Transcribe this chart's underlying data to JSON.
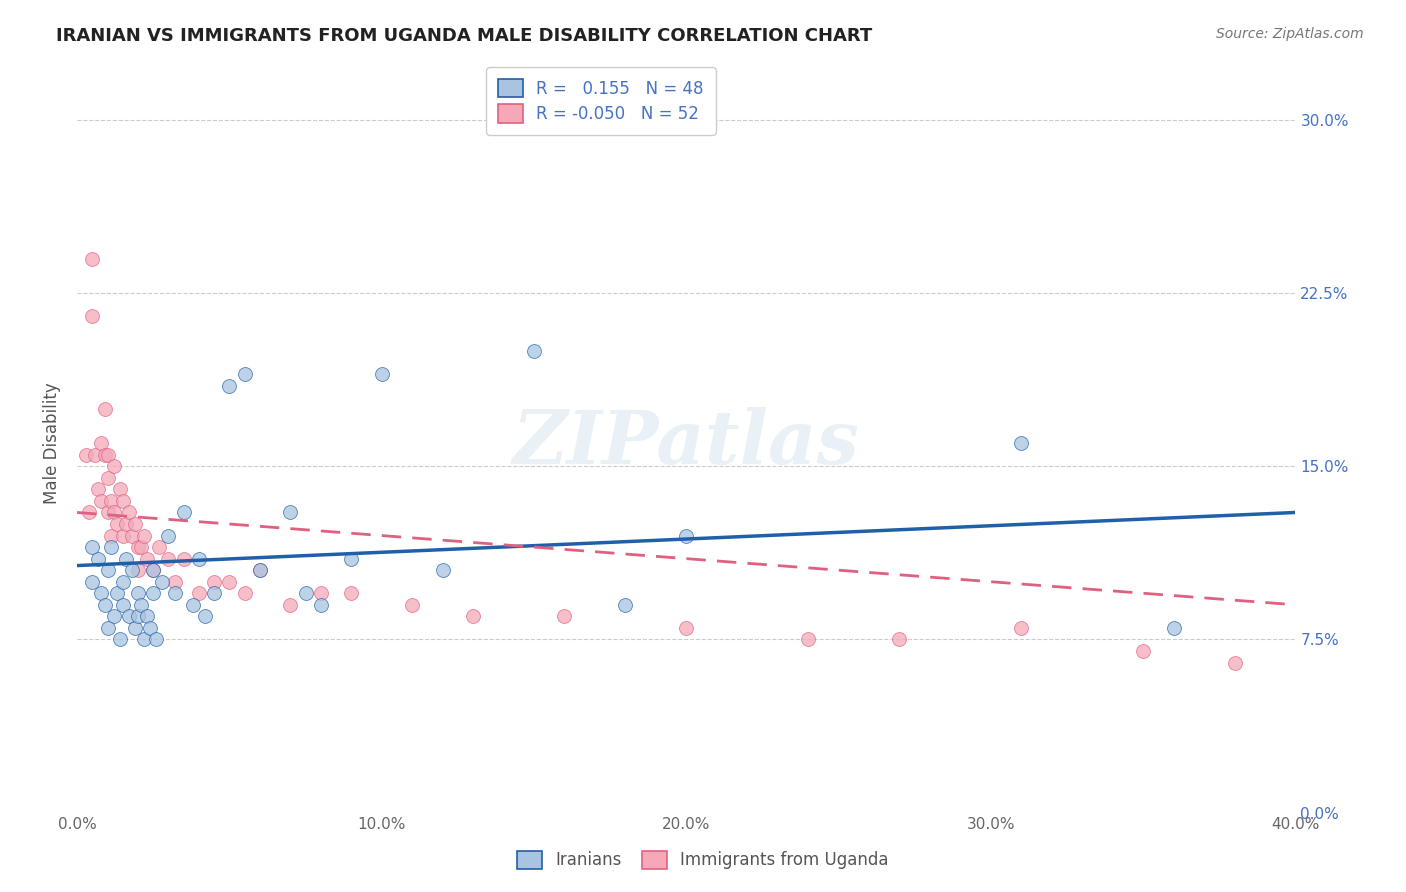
{
  "title": "IRANIAN VS IMMIGRANTS FROM UGANDA MALE DISABILITY CORRELATION CHART",
  "source": "Source: ZipAtlas.com",
  "ylabel": "Male Disability",
  "xlim": [
    0.0,
    0.4
  ],
  "ylim": [
    0.0,
    0.32
  ],
  "yticks": [
    0.0,
    0.075,
    0.15,
    0.225,
    0.3
  ],
  "ytick_labels": [
    "0.0%",
    "7.5%",
    "15.0%",
    "22.5%",
    "30.0%"
  ],
  "xticks": [
    0.0,
    0.1,
    0.2,
    0.3,
    0.4
  ],
  "xtick_labels": [
    "0.0%",
    "10.0%",
    "20.0%",
    "30.0%",
    "40.0%"
  ],
  "legend_r_iranian": "0.155",
  "legend_n_iranian": "48",
  "legend_r_uganda": "-0.050",
  "legend_n_uganda": "52",
  "color_iranian": "#a8c4e0",
  "color_uganda": "#f4a8b8",
  "line_color_iranian": "#2060a8",
  "line_color_uganda": "#e06080",
  "background_color": "#ffffff",
  "watermark": "ZIPatlas",
  "iranians_x": [
    0.005,
    0.005,
    0.007,
    0.008,
    0.009,
    0.01,
    0.01,
    0.011,
    0.012,
    0.013,
    0.014,
    0.015,
    0.015,
    0.016,
    0.017,
    0.018,
    0.019,
    0.02,
    0.02,
    0.021,
    0.022,
    0.023,
    0.024,
    0.025,
    0.025,
    0.026,
    0.028,
    0.03,
    0.032,
    0.035,
    0.038,
    0.04,
    0.042,
    0.045,
    0.05,
    0.055,
    0.06,
    0.07,
    0.075,
    0.08,
    0.09,
    0.1,
    0.12,
    0.15,
    0.18,
    0.2,
    0.31,
    0.36
  ],
  "iranians_y": [
    0.115,
    0.1,
    0.11,
    0.095,
    0.09,
    0.105,
    0.08,
    0.115,
    0.085,
    0.095,
    0.075,
    0.09,
    0.1,
    0.11,
    0.085,
    0.105,
    0.08,
    0.095,
    0.085,
    0.09,
    0.075,
    0.085,
    0.08,
    0.095,
    0.105,
    0.075,
    0.1,
    0.12,
    0.095,
    0.13,
    0.09,
    0.11,
    0.085,
    0.095,
    0.185,
    0.19,
    0.105,
    0.13,
    0.095,
    0.09,
    0.11,
    0.19,
    0.105,
    0.2,
    0.09,
    0.12,
    0.16,
    0.08
  ],
  "uganda_x": [
    0.003,
    0.004,
    0.005,
    0.005,
    0.006,
    0.007,
    0.008,
    0.008,
    0.009,
    0.009,
    0.01,
    0.01,
    0.01,
    0.011,
    0.011,
    0.012,
    0.012,
    0.013,
    0.014,
    0.015,
    0.015,
    0.016,
    0.017,
    0.018,
    0.019,
    0.02,
    0.02,
    0.021,
    0.022,
    0.023,
    0.025,
    0.027,
    0.03,
    0.032,
    0.035,
    0.04,
    0.045,
    0.05,
    0.055,
    0.06,
    0.07,
    0.08,
    0.09,
    0.11,
    0.13,
    0.16,
    0.2,
    0.24,
    0.27,
    0.31,
    0.35,
    0.38
  ],
  "uganda_y": [
    0.155,
    0.13,
    0.215,
    0.24,
    0.155,
    0.14,
    0.135,
    0.16,
    0.155,
    0.175,
    0.13,
    0.145,
    0.155,
    0.12,
    0.135,
    0.13,
    0.15,
    0.125,
    0.14,
    0.12,
    0.135,
    0.125,
    0.13,
    0.12,
    0.125,
    0.105,
    0.115,
    0.115,
    0.12,
    0.11,
    0.105,
    0.115,
    0.11,
    0.1,
    0.11,
    0.095,
    0.1,
    0.1,
    0.095,
    0.105,
    0.09,
    0.095,
    0.095,
    0.09,
    0.085,
    0.085,
    0.08,
    0.075,
    0.075,
    0.08,
    0.07,
    0.065
  ],
  "iran_line_x0": 0.0,
  "iran_line_x1": 0.4,
  "iran_line_y0": 0.107,
  "iran_line_y1": 0.13,
  "uganda_line_x0": 0.0,
  "uganda_line_x1": 0.4,
  "uganda_line_y0": 0.13,
  "uganda_line_y1": 0.09
}
